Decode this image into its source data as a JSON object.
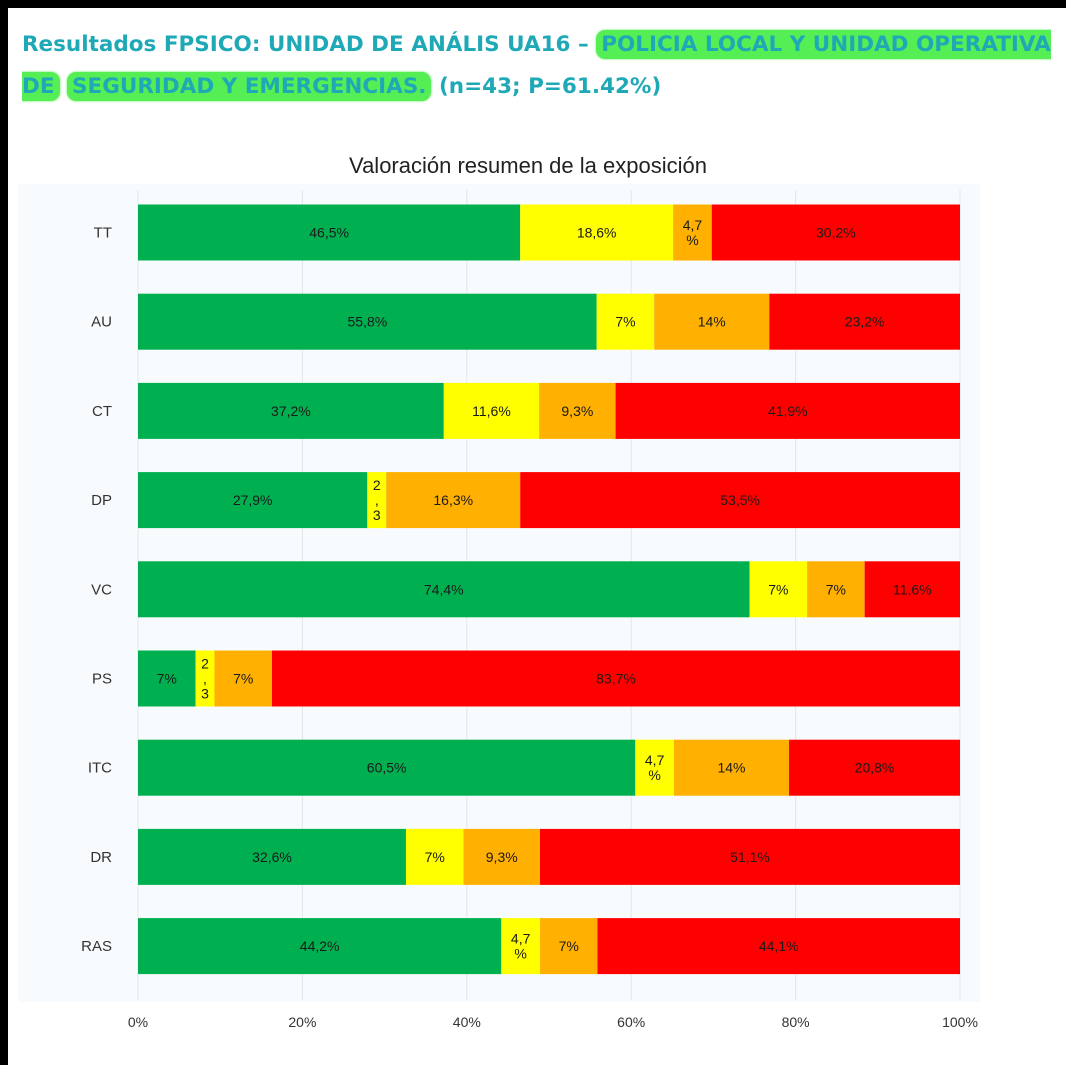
{
  "header": {
    "prefix": "Resultados FPSICO: UNIDAD DE ANÁLIS UA16 –",
    "highlight_1": "POLICIA LOCAL Y UNIDAD OPERATIVA DE",
    "highlight_2": "SEGURIDAD Y EMERGENCIAS.",
    "suffix": "(n=43; P=61.42%)",
    "text_color": "#1fa9b6",
    "highlight_color": "#55ef55"
  },
  "chart_data": {
    "type": "bar",
    "orientation": "horizontal",
    "stacked": true,
    "title": "Valoración resumen de la exposición",
    "xlabel": "",
    "ylabel": "",
    "xlim": [
      0,
      100
    ],
    "x_ticks": [
      "0%",
      "20%",
      "40%",
      "60%",
      "80%",
      "100%"
    ],
    "grid": true,
    "legend": "none",
    "categories": [
      "TT",
      "AU",
      "CT",
      "DP",
      "VC",
      "PS",
      "ITC",
      "DR",
      "RAS"
    ],
    "series": [
      {
        "color": "#00b050",
        "values": [
          46.5,
          55.8,
          37.2,
          27.9,
          74.4,
          7.0,
          60.5,
          32.6,
          44.2
        ],
        "labels": [
          "46,5%",
          "55,8%",
          "37,2%",
          "27,9%",
          "74,4%",
          "7%",
          "60,5%",
          "32,6%",
          "44,2%"
        ]
      },
      {
        "color": "#ffff00",
        "values": [
          18.6,
          7.0,
          11.6,
          2.3,
          7.0,
          2.3,
          4.7,
          7.0,
          4.7
        ],
        "labels": [
          "18,6%",
          "7%",
          "11,6%",
          "2\n,\n3",
          "7%",
          "2\n,\n3",
          "4,7\n%",
          "7%",
          "4,7\n%"
        ]
      },
      {
        "color": "#ffb000",
        "values": [
          4.7,
          14.0,
          9.3,
          16.3,
          7.0,
          7.0,
          14.0,
          9.3,
          7.0
        ],
        "labels": [
          "4,7\n%",
          "14%",
          "9,3%",
          "16,3%",
          "7%",
          "7%",
          "14%",
          "9,3%",
          "7%"
        ]
      },
      {
        "color": "#ff0000",
        "values": [
          30.2,
          23.2,
          41.9,
          53.5,
          11.6,
          83.7,
          20.8,
          51.1,
          44.1
        ],
        "labels": [
          "30,2%",
          "23,2%",
          "41,9%",
          "53,5%",
          "11,6%",
          "83,7%",
          "20,8%",
          "51,1%",
          "44,1%"
        ]
      }
    ]
  }
}
